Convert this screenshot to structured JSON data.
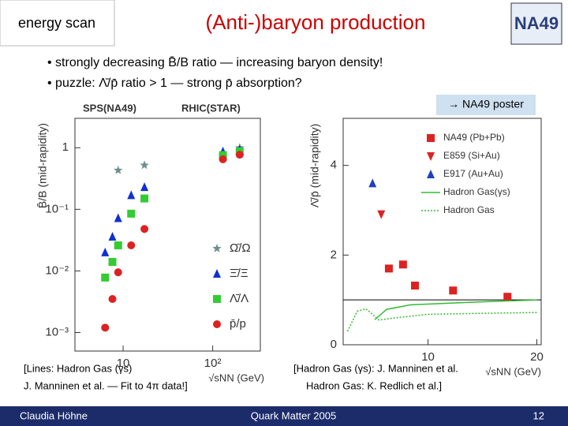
{
  "header": {
    "section": "energy scan",
    "title": "(Anti-)baryon production",
    "logo": "NA49"
  },
  "bullets": [
    "• strongly decreasing B̄/B ratio — increasing baryon density!",
    "• puzzle: Λ̄/p̄ ratio > 1 — strong p̄ absorption?"
  ],
  "link": "→ NA49 poster",
  "captions": {
    "left": [
      "[Lines: Hadron Gas (γs)",
      "J. Manninen et al. — Fit to 4π data!]"
    ],
    "right": [
      "[Hadron Gas (γs): J. Manninen et al.",
      "Hadron Gas: K. Redlich et al.]"
    ]
  },
  "footer": {
    "author": "Claudia Höhne",
    "event": "Quark Matter 2005",
    "page": "12"
  },
  "chart_data": [
    {
      "type": "scatter",
      "xlog": true,
      "ylog": true,
      "annotations": [
        "SPS(NA49)",
        "RHIC(STAR)"
      ],
      "xlabel": "√sNN (GeV)",
      "ylabel": "B̄/B (mid-rapidity)",
      "xlim": [
        2.9,
        340
      ],
      "ylim": [
        0.0005,
        3
      ],
      "xticks": [
        10,
        {
          "value": 100,
          "label": "10²"
        }
      ],
      "yticks": [
        1,
        {
          "value": 0.1,
          "label": "10⁻¹"
        },
        {
          "value": 0.01,
          "label": "10⁻²"
        },
        {
          "value": 0.001,
          "label": "10⁻³"
        }
      ],
      "legend": "lower right",
      "series": [
        {
          "name": "Ω̄/Ω",
          "color": "#6f8f8f",
          "marker": "star",
          "x": [
            8.8,
            17.3,
            130,
            200
          ],
          "values": [
            0.43,
            0.52,
            0.73,
            1.0
          ]
        },
        {
          "name": "Ξ̄/Ξ",
          "color": "#1030d0",
          "marker": "triangle",
          "x": [
            6.3,
            7.6,
            8.8,
            12.3,
            17.3,
            130,
            200
          ],
          "values": [
            0.02,
            0.036,
            0.072,
            0.17,
            0.23,
            0.87,
            0.93
          ]
        },
        {
          "name": "Λ̄/Λ",
          "color": "#33cc33",
          "marker": "square",
          "x": [
            6.3,
            7.6,
            8.8,
            12.3,
            17.3,
            130,
            200
          ],
          "values": [
            0.0078,
            0.014,
            0.026,
            0.085,
            0.15,
            0.76,
            0.87
          ]
        },
        {
          "name": "p̄/p",
          "color": "#dd2222",
          "marker": "circle",
          "x": [
            6.3,
            7.6,
            8.8,
            12.3,
            17.3,
            130,
            200
          ],
          "values": [
            0.0012,
            0.0035,
            0.0095,
            0.026,
            0.048,
            0.65,
            0.77
          ]
        }
      ]
    },
    {
      "type": "scatter",
      "xlog": false,
      "ylog": false,
      "xlabel": "√sNN (GeV)",
      "ylabel": "Λ̄/p̄ (mid-rapidity)",
      "xlim": [
        2.2,
        20.4
      ],
      "ylim": [
        0,
        5.05
      ],
      "xticks": [
        10,
        20
      ],
      "yticks": [
        0,
        2,
        4
      ],
      "hline": 1,
      "legend": "upper right",
      "series": [
        {
          "name": "NA49 (Pb+Pb)",
          "color": "#dd2222",
          "marker": "square",
          "x": [
            6.4,
            7.7,
            8.8,
            12.3,
            17.3
          ],
          "values": [
            1.7,
            1.79,
            1.32,
            1.21,
            1.07
          ]
        },
        {
          "name": "E859 (Si+Au)",
          "color": "#dd2222",
          "marker": "triangle-down",
          "x": [
            5.7
          ],
          "values": [
            2.91
          ]
        },
        {
          "name": "E917 (Au+Au)",
          "color": "#2040c0",
          "marker": "triangle",
          "x": [
            4.9
          ],
          "values": [
            3.6
          ]
        },
        {
          "name": "Hadron Gas(γs)",
          "color": "#33bb33",
          "marker": "line",
          "x": [
            5.1,
            6.2,
            8.4,
            14.2,
            20
          ],
          "values": [
            0.56,
            0.79,
            0.89,
            0.95,
            1.0
          ]
        },
        {
          "name": "Hadron Gas",
          "color": "#33bb33",
          "marker": "dotted",
          "x": [
            2.6,
            3.5,
            4.3,
            5.5,
            7,
            10,
            15,
            20
          ],
          "values": [
            0.3,
            0.75,
            0.8,
            0.55,
            0.6,
            0.68,
            0.7,
            0.72
          ]
        }
      ]
    }
  ]
}
